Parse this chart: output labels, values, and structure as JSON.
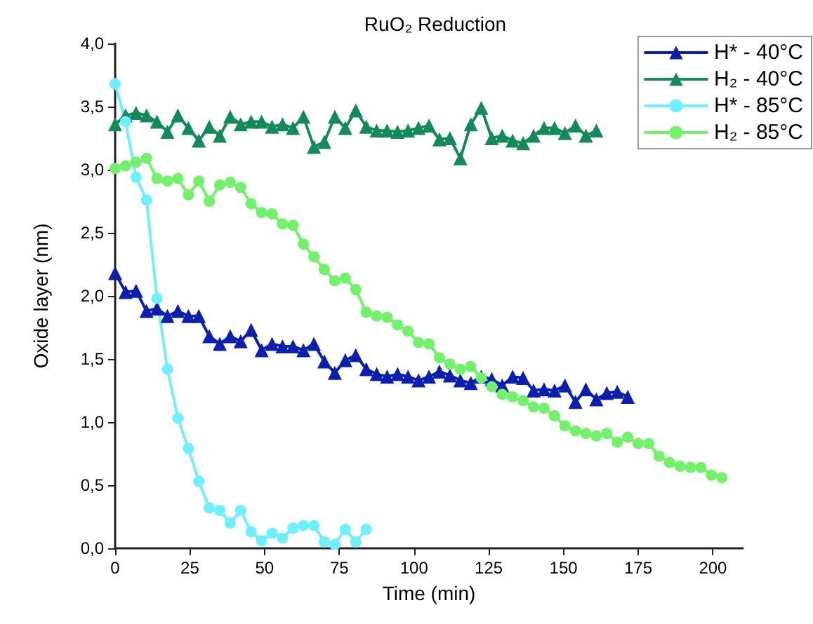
{
  "chart_data": {
    "type": "line",
    "title": "RuO₂ Reduction",
    "xlabel": "Time (min)",
    "ylabel": "Oxide layer (nm)",
    "xlim": [
      0,
      210
    ],
    "xticks": [
      0,
      25,
      50,
      75,
      100,
      125,
      150,
      175,
      200
    ],
    "ylim": [
      0,
      4
    ],
    "yticks": [
      {
        "value": 0,
        "label": "0,0"
      },
      {
        "value": 0.5,
        "label": "0,5"
      },
      {
        "value": 1,
        "label": "1,0"
      },
      {
        "value": 1.5,
        "label": "1,5"
      },
      {
        "value": 2,
        "label": "2,0"
      },
      {
        "value": 2.5,
        "label": "2,5"
      },
      {
        "value": 3,
        "label": "3,0"
      },
      {
        "value": 3.5,
        "label": "3,5"
      },
      {
        "value": 4,
        "label": "4,0"
      }
    ],
    "grid": false,
    "legend": "top right",
    "line_style": "solid",
    "series": [
      {
        "name": "H* - 40°C",
        "color": "#0a1fae",
        "marker": "triangle",
        "x": [
          0,
          3.5,
          7,
          10.5,
          14,
          17.5,
          21,
          24.5,
          28,
          31.5,
          35,
          38.5,
          42,
          45.5,
          49,
          52.5,
          56,
          59.5,
          63,
          66.5,
          70,
          73.5,
          77,
          80.5,
          84,
          87.5,
          91,
          94.5,
          98,
          101.5,
          105,
          108.5,
          112,
          115.5,
          119,
          122.5,
          126,
          129.5,
          133,
          136.5,
          140,
          143.5,
          147,
          150.5,
          154,
          157.5,
          161,
          164.5,
          168,
          171.5
        ],
        "values": [
          2.18,
          2.03,
          2.04,
          1.88,
          1.9,
          1.84,
          1.88,
          1.84,
          1.84,
          1.68,
          1.62,
          1.68,
          1.64,
          1.73,
          1.57,
          1.62,
          1.6,
          1.6,
          1.57,
          1.62,
          1.48,
          1.39,
          1.49,
          1.53,
          1.42,
          1.38,
          1.36,
          1.38,
          1.36,
          1.33,
          1.36,
          1.4,
          1.37,
          1.33,
          1.31,
          1.36,
          1.34,
          1.29,
          1.36,
          1.35,
          1.25,
          1.26,
          1.25,
          1.29,
          1.16,
          1.26,
          1.18,
          1.23,
          1.24,
          1.2
        ]
      },
      {
        "name": "H₂ - 40°C",
        "color": "#138a5a",
        "marker": "triangle",
        "x": [
          0,
          3.5,
          7,
          10.5,
          14,
          17.5,
          21,
          24.5,
          28,
          31.5,
          35,
          38.5,
          42,
          45.5,
          49,
          52.5,
          56,
          59.5,
          63,
          66.5,
          70,
          73.5,
          77,
          80.5,
          84,
          87.5,
          91,
          94.5,
          98,
          101.5,
          105,
          108.5,
          112,
          115.5,
          119,
          122.5,
          126,
          129.5,
          133,
          136.5,
          140,
          143.5,
          147,
          150.5,
          154,
          157.5,
          161
        ],
        "values": [
          3.36,
          3.43,
          3.45,
          3.43,
          3.38,
          3.3,
          3.43,
          3.33,
          3.23,
          3.34,
          3.27,
          3.42,
          3.36,
          3.38,
          3.38,
          3.34,
          3.36,
          3.33,
          3.42,
          3.18,
          3.22,
          3.42,
          3.33,
          3.47,
          3.34,
          3.31,
          3.31,
          3.3,
          3.31,
          3.33,
          3.35,
          3.24,
          3.25,
          3.09,
          3.36,
          3.49,
          3.25,
          3.27,
          3.23,
          3.21,
          3.27,
          3.33,
          3.33,
          3.29,
          3.35,
          3.27,
          3.31
        ]
      },
      {
        "name": "H* - 85°C",
        "color": "#6ff0ff",
        "marker": "circle",
        "x": [
          0,
          3.5,
          7,
          10.5,
          14,
          17.5,
          21,
          24.5,
          28,
          31.5,
          35,
          38.5,
          42,
          45.5,
          49,
          52.5,
          56,
          59.5,
          63,
          66.5,
          70,
          73.5,
          77,
          80.5,
          84
        ],
        "values": [
          3.68,
          3.38,
          2.94,
          2.76,
          1.98,
          1.42,
          1.03,
          0.79,
          0.53,
          0.32,
          0.3,
          0.2,
          0.3,
          0.13,
          0.06,
          0.12,
          0.08,
          0.16,
          0.18,
          0.18,
          0.05,
          0.03,
          0.15,
          0.05,
          0.15
        ]
      },
      {
        "name": "H₂ - 85°C",
        "color": "#72f26a",
        "marker": "circle",
        "x": [
          0,
          3.5,
          7,
          10.5,
          14,
          17.5,
          21,
          24.5,
          28,
          31.5,
          35,
          38.5,
          42,
          45.5,
          49,
          52.5,
          56,
          59.5,
          63,
          66.5,
          70,
          73.5,
          77,
          80.5,
          84,
          87.5,
          91,
          94.5,
          98,
          101.5,
          105,
          108.5,
          112,
          115.5,
          119,
          122.5,
          126,
          129.5,
          133,
          136.5,
          140,
          143.5,
          147,
          150.5,
          154,
          157.5,
          161,
          164.5,
          168,
          171.5,
          175,
          178.5,
          182,
          185.5,
          189,
          192.5,
          196,
          199.5,
          203
        ],
        "values": [
          3.01,
          3.03,
          3.06,
          3.09,
          2.93,
          2.91,
          2.93,
          2.8,
          2.91,
          2.75,
          2.88,
          2.9,
          2.86,
          2.73,
          2.66,
          2.65,
          2.57,
          2.56,
          2.41,
          2.31,
          2.21,
          2.12,
          2.14,
          2.05,
          1.87,
          1.84,
          1.83,
          1.77,
          1.72,
          1.63,
          1.62,
          1.51,
          1.46,
          1.42,
          1.44,
          1.35,
          1.28,
          1.22,
          1.2,
          1.17,
          1.12,
          1.11,
          1.05,
          0.97,
          0.93,
          0.91,
          0.89,
          0.91,
          0.84,
          0.88,
          0.83,
          0.83,
          0.73,
          0.68,
          0.65,
          0.64,
          0.64,
          0.58,
          0.56
        ]
      }
    ]
  }
}
